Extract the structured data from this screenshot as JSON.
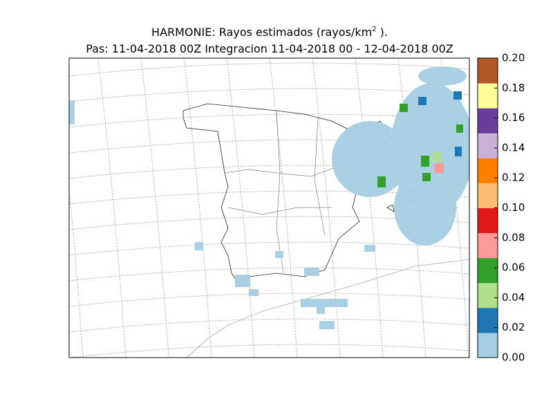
{
  "header": {
    "title_line1": "HARMONIE: Rayos estimados  (rayos/km",
    "title_superscript": "2",
    "title_line1_end": " ).",
    "title_line2": "Pas: 11-04-2018 00Z Integracion 11-04-2018 00 - 12-04-2018 00Z"
  },
  "colorbar": {
    "lim": [
      0,
      0.2
    ],
    "ticks": [
      {
        "value": 0,
        "label": "0.00"
      },
      {
        "value": 0.02,
        "label": "0.02"
      },
      {
        "value": 0.04,
        "label": "0.04"
      },
      {
        "value": 0.06,
        "label": "0.06"
      },
      {
        "value": 0.08,
        "label": "0.08"
      },
      {
        "value": 0.1,
        "label": "0.10"
      },
      {
        "value": 0.12,
        "label": "0.12"
      },
      {
        "value": 0.14,
        "label": "0.14"
      },
      {
        "value": 0.16,
        "label": "0.16"
      },
      {
        "value": 0.18,
        "label": "0.18"
      },
      {
        "value": 0.2,
        "label": "0.20"
      }
    ],
    "colors": [
      "#a6cee3",
      "#1f78b4",
      "#b2df8a",
      "#33a02c",
      "#fb9a99",
      "#e31a1c",
      "#fdbf6f",
      "#ff7f00",
      "#cab2d6",
      "#6a3d9a",
      "#ffff99",
      "#b15928"
    ]
  }
}
